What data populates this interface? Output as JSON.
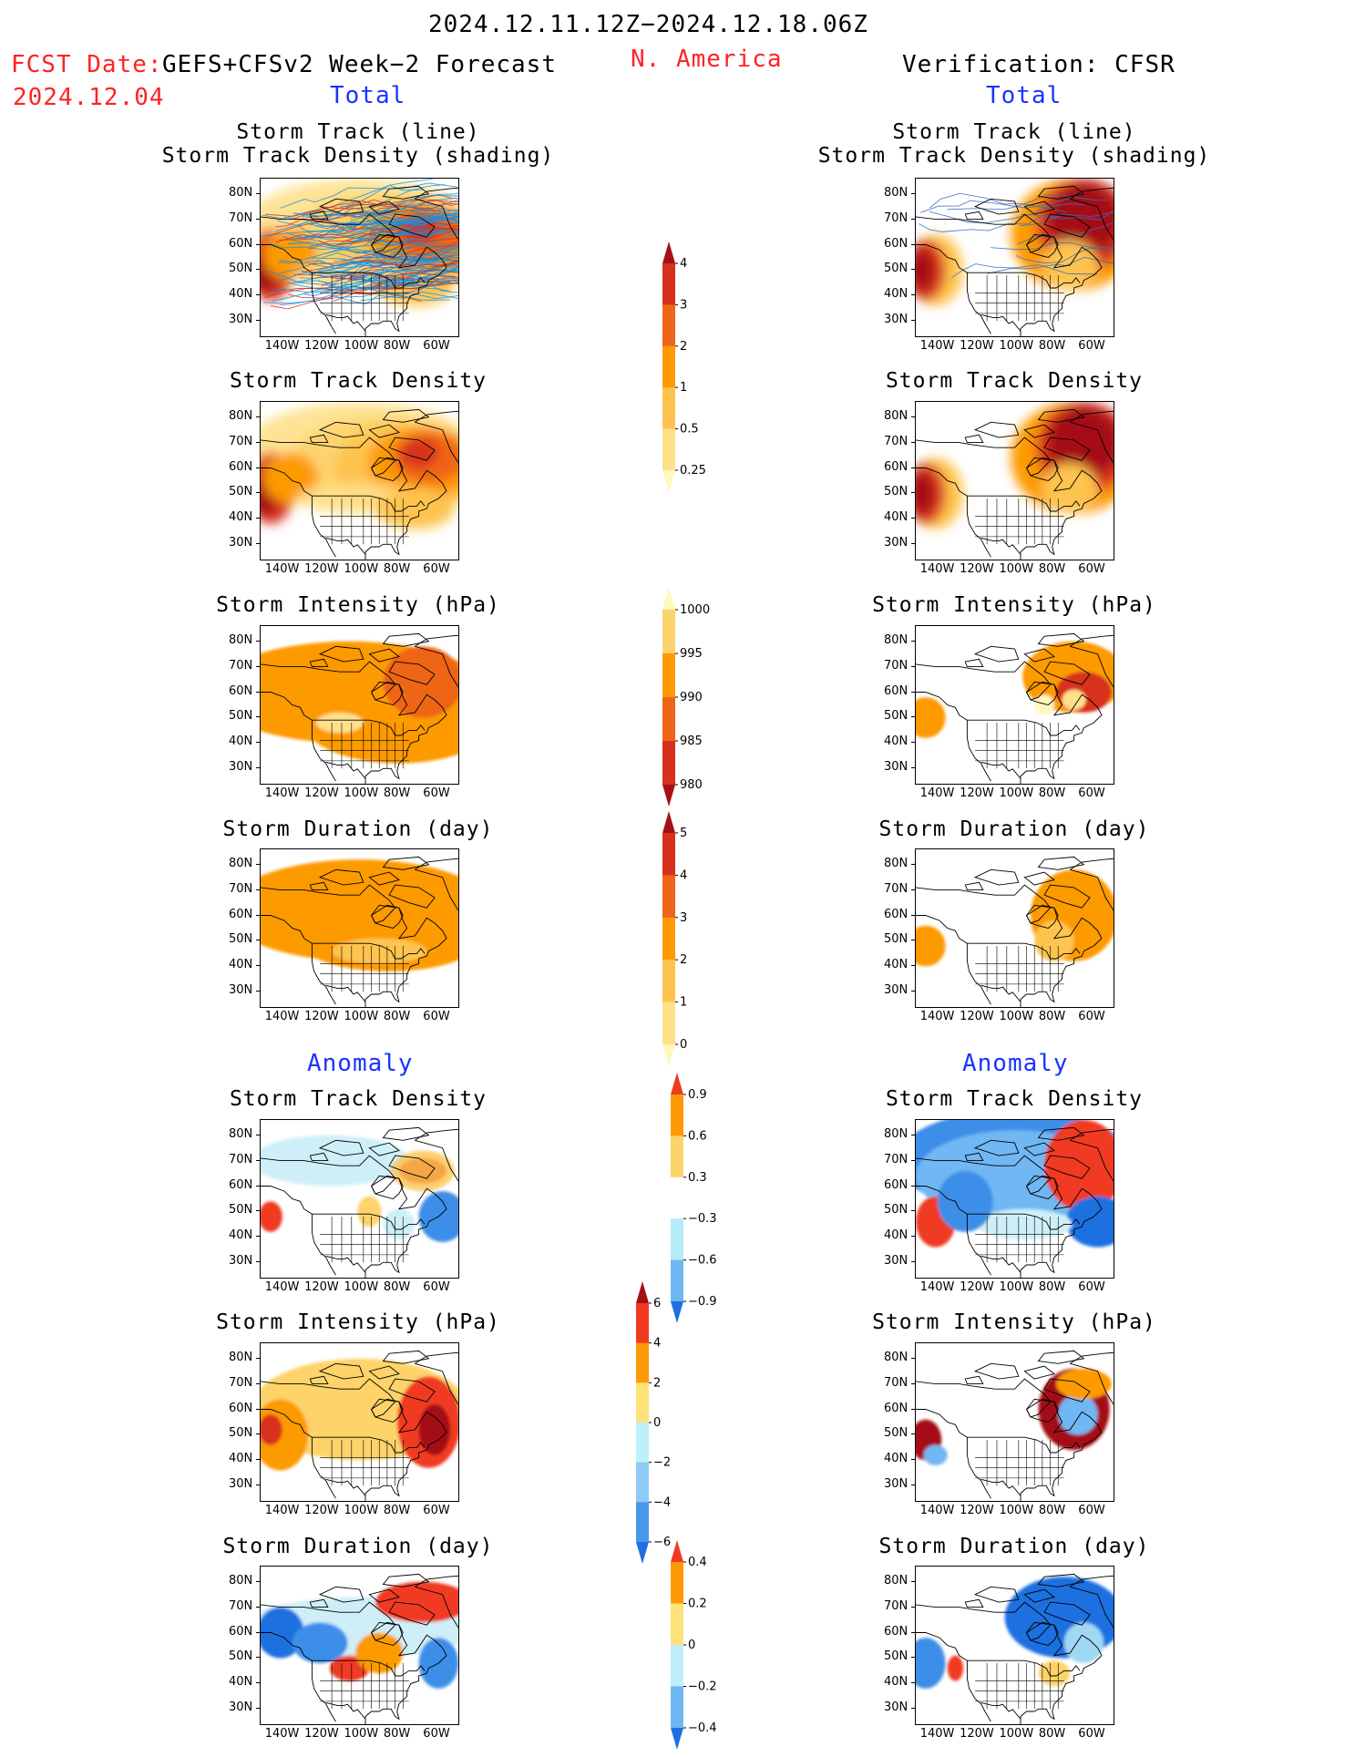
{
  "header": {
    "date_range": "2024.12.11.12Z−2024.12.18.06Z",
    "fcst_label": "FCST Date:",
    "forecast_name": "GEFS+CFSv2 Week−2 Forecast",
    "fcst_date": "2024.12.04",
    "region": "N. America",
    "verification": "Verification: CFSR"
  },
  "sections": {
    "total": "Total",
    "anomaly": "Anomaly"
  },
  "panel_titles": {
    "track_line": "Storm Track (line)",
    "track_shading": "Storm Track Density (shading)",
    "density": "Storm Track Density",
    "intensity": "Storm Intensity (hPa)",
    "duration": "Storm Duration (day)"
  },
  "axes": {
    "lat_labels": [
      "80N",
      "70N",
      "60N",
      "50N",
      "40N",
      "30N"
    ],
    "lon_labels": [
      "140W",
      "120W",
      "100W",
      "80W",
      "60W"
    ]
  },
  "colorbars": {
    "density_total": {
      "labels": [
        "4",
        "3",
        "2",
        "1",
        "0.5",
        "0.25"
      ],
      "colors": [
        "#a50f15",
        "#d7301f",
        "#ef6518",
        "#fd9a06",
        "#fec44f",
        "#ffe08a",
        "#fff7bc"
      ]
    },
    "intensity_total": {
      "labels": [
        "1000",
        "995",
        "990",
        "985",
        "980"
      ],
      "colors": [
        "#fff7bc",
        "#fdd36b",
        "#fd9a06",
        "#ef6518",
        "#d7301f",
        "#a50f15"
      ]
    },
    "duration_total": {
      "labels": [
        "5",
        "4",
        "3",
        "2",
        "1",
        "0"
      ],
      "colors": [
        "#a50f15",
        "#d7301f",
        "#ef6518",
        "#fd9a06",
        "#fec44f",
        "#ffe08a",
        "#fff7bc"
      ]
    },
    "density_anom": {
      "labels": [
        "0.9",
        "0.6",
        "0.3",
        "−0.3",
        "−0.6",
        "−0.9"
      ],
      "colors": [
        "#f03b20",
        "#fd9a06",
        "#fdd36b",
        "#ffffff",
        "#b6ecf7",
        "#6fb7f3",
        "#1f6fe0"
      ]
    },
    "intensity_anom": {
      "labels": [
        "6",
        "4",
        "2",
        "0",
        "−2",
        "−4",
        "−6"
      ],
      "colors": [
        "#a50f15",
        "#f03b20",
        "#fd9a06",
        "#fde27a",
        "#bfeffa",
        "#8fcaf5",
        "#4a98ea",
        "#1f6fe0"
      ]
    },
    "duration_anom": {
      "labels": [
        "0.4",
        "0.2",
        "0",
        "−0.2",
        "−0.4"
      ],
      "colors": [
        "#f03b20",
        "#fd9a06",
        "#fde27a",
        "#bfeffa",
        "#6fb7f3",
        "#1f6fe0"
      ]
    }
  }
}
